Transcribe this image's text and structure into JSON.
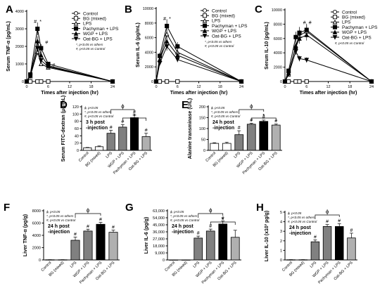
{
  "chart_data": [
    {
      "panel": "A",
      "type": "line",
      "ylabel": "Serum TNF-α (pg/mL)",
      "xlabel": "Times after injection (hr)",
      "ylim": [
        0,
        4000
      ],
      "yticks": [
        "0",
        "1000",
        "2000",
        "3000",
        "4000"
      ],
      "xlim": [
        0,
        24
      ],
      "xticks": [
        "0",
        "6",
        "12",
        "18",
        "24"
      ],
      "notes": [
        "*, p<0.05 vs others",
        "#, p<0.05 vs Control"
      ],
      "marks": [
        "#",
        "*",
        "#",
        "#"
      ],
      "series": [
        {
          "name": "Control",
          "marker": "circle-open",
          "x": [
            0,
            1,
            3,
            4,
            6,
            24
          ],
          "y": [
            0,
            0,
            0,
            0,
            0,
            0
          ]
        },
        {
          "name": "BG (mixed)",
          "marker": "square-open",
          "x": [
            0,
            1,
            3,
            4,
            6,
            24
          ],
          "y": [
            0,
            0,
            0,
            0,
            0,
            0
          ]
        },
        {
          "name": "LPS",
          "marker": "triangle-open",
          "x": [
            0,
            1,
            3,
            4,
            6,
            24
          ],
          "y": [
            0,
            300,
            1700,
            1000,
            800,
            0
          ]
        },
        {
          "name": "Pachyman + LPS",
          "marker": "square-filled",
          "x": [
            0,
            1,
            3,
            4,
            6,
            24
          ],
          "y": [
            0,
            400,
            3000,
            1900,
            1000,
            0
          ]
        },
        {
          "name": "WGP + LPS",
          "marker": "triangle-filled",
          "x": [
            0,
            1,
            3,
            4,
            6,
            24
          ],
          "y": [
            0,
            350,
            2300,
            1500,
            900,
            0
          ]
        },
        {
          "name": "Oat-BG + LPS",
          "marker": "triangle-down-filled",
          "x": [
            0,
            1,
            3,
            4,
            6,
            24
          ],
          "y": [
            0,
            300,
            1900,
            1200,
            850,
            0
          ]
        }
      ]
    },
    {
      "panel": "B",
      "type": "line",
      "ylabel": "Serum IL-6 (pg/mL)",
      "xlabel": "Times after injection (hr)",
      "ylim": [
        0,
        10000
      ],
      "yticks": [
        "0",
        "2000",
        "4000",
        "6000",
        "8000",
        "10000"
      ],
      "xlim": [
        0,
        24
      ],
      "xticks": [
        "0",
        "6",
        "12",
        "18",
        "24"
      ],
      "notes": [
        "*, p<0.05 vs others",
        "#, p<0.05 vs Control"
      ],
      "marks": [
        "#",
        "*"
      ],
      "series": [
        {
          "name": "Control",
          "marker": "circle-open",
          "x": [
            0,
            1,
            3,
            6,
            24
          ],
          "y": [
            0,
            0,
            0,
            0,
            0
          ]
        },
        {
          "name": "BG (mixed)",
          "marker": "square-open",
          "x": [
            0,
            1,
            3,
            6,
            24
          ],
          "y": [
            0,
            0,
            0,
            0,
            0
          ]
        },
        {
          "name": "LPS",
          "marker": "triangle-open",
          "x": [
            0,
            1,
            3,
            6,
            24
          ],
          "y": [
            0,
            3000,
            6500,
            4000,
            0
          ]
        },
        {
          "name": "Pachyman + LPS",
          "marker": "square-filled",
          "x": [
            0,
            1,
            3,
            6,
            24
          ],
          "y": [
            0,
            3500,
            7600,
            4800,
            0
          ]
        },
        {
          "name": "WGP + LPS",
          "marker": "triangle-filled",
          "x": [
            0,
            1,
            3,
            6,
            24
          ],
          "y": [
            0,
            3000,
            5500,
            3600,
            0
          ]
        },
        {
          "name": "Oat-BG + LPS",
          "marker": "triangle-down-filled",
          "x": [
            0,
            1,
            3,
            6,
            24
          ],
          "y": [
            0,
            2500,
            4800,
            3000,
            0
          ]
        }
      ]
    },
    {
      "panel": "C",
      "type": "line",
      "ylabel": "Serum IL-10 (pg/mL)",
      "xlabel": "Times after injection (hr)",
      "ylim": [
        0,
        10000
      ],
      "yticks": [
        "0",
        "2000",
        "4000",
        "6000",
        "8000",
        "10000"
      ],
      "xlim": [
        0,
        24
      ],
      "xticks": [
        "0",
        "6",
        "12",
        "18",
        "24"
      ],
      "notes": [
        "#, p<0.05 vs Control"
      ],
      "marks": [
        "#",
        "#"
      ],
      "series": [
        {
          "name": "Control",
          "marker": "circle-open",
          "x": [
            0,
            1,
            3,
            4,
            6,
            24
          ],
          "y": [
            0,
            0,
            0,
            0,
            0,
            0
          ]
        },
        {
          "name": "BG (mixed)",
          "marker": "square-open",
          "x": [
            0,
            1,
            3,
            4,
            6,
            24
          ],
          "y": [
            0,
            0,
            0,
            0,
            0,
            0
          ]
        },
        {
          "name": "LPS",
          "marker": "triangle-open",
          "x": [
            0,
            1,
            3,
            4,
            6,
            24
          ],
          "y": [
            0,
            1000,
            5000,
            6400,
            7000,
            0
          ]
        },
        {
          "name": "Pachyman + LPS",
          "marker": "square-filled",
          "x": [
            0,
            1,
            3,
            4,
            6,
            24
          ],
          "y": [
            0,
            1500,
            6200,
            6800,
            7200,
            0
          ]
        },
        {
          "name": "WGP + LPS",
          "marker": "triangle-filled",
          "x": [
            0,
            1,
            3,
            4,
            6,
            24
          ],
          "y": [
            0,
            1200,
            4800,
            6000,
            6500,
            0
          ]
        },
        {
          "name": "Oat-BG + LPS",
          "marker": "triangle-down-filled",
          "x": [
            0,
            1,
            3,
            4,
            6,
            24
          ],
          "y": [
            0,
            1000,
            4200,
            3200,
            3000,
            0
          ]
        }
      ]
    },
    {
      "panel": "D",
      "type": "bar",
      "ylabel": "Serum FITC-dextran (μg/mL)",
      "annotation": "3 h post -injection",
      "ylim": [
        0,
        120
      ],
      "yticks": [
        "0",
        "20",
        "40",
        "60",
        "80",
        "100",
        "120"
      ],
      "notes": [
        "ϕ, p<0.05",
        "*, p<0.05 vs others",
        "#, p<0.05 vs Control"
      ],
      "categories": [
        "Control",
        "BG (mixed)",
        "LPS",
        "WGP + LPS",
        "Pachyman + LPS",
        "Oat-BG + LPS"
      ],
      "values": [
        7,
        10,
        47,
        64,
        90,
        38
      ],
      "errors": [
        1,
        2,
        8,
        7,
        7,
        9
      ],
      "colors": [
        "#ffffff",
        "#ffffff",
        "#808080",
        "#808080",
        "#000000",
        "#b0b0b0"
      ],
      "marks": [
        "",
        "",
        "#",
        "#",
        "*#",
        "#"
      ]
    },
    {
      "panel": "E",
      "type": "bar",
      "ylabel": "Alanine transminase (U/L)",
      "annotation": "24 h post -injection",
      "ylim": [
        0,
        200
      ],
      "yticks": [
        "0",
        "50",
        "100",
        "150",
        "200"
      ],
      "notes": [
        "ϕ, p<0.05",
        "*, p<0.05 vs others",
        "#, p<0.05 vs Control"
      ],
      "categories": [
        "Control",
        "BG (mixed)",
        "LPS",
        "WGP + LPS",
        "Pachyman + LPS",
        "Oat-BG + LPS"
      ],
      "values": [
        32,
        32,
        72,
        120,
        133,
        116
      ],
      "errors": [
        3,
        5,
        18,
        4,
        6,
        5
      ],
      "colors": [
        "#ffffff",
        "#ffffff",
        "#808080",
        "#808080",
        "#000000",
        "#b0b0b0"
      ],
      "marks": [
        "",
        "",
        "#",
        "#",
        "*#",
        "#"
      ]
    },
    {
      "panel": "F",
      "type": "bar",
      "ylabel": "Liver TNF-α (pg/g)",
      "annotation": "24 h post -injection",
      "ylim": [
        0,
        8000
      ],
      "yticks": [
        "0",
        "2000",
        "4000",
        "6000",
        "8000"
      ],
      "notes": [
        "ϕ, p<0.05",
        "*, p<0.05 vs others",
        "#, p<0.05 vs Control"
      ],
      "categories": [
        "Control",
        "BG (mixed)",
        "LPS",
        "WGP + LPS",
        "Pachyman + LPS",
        "Oat-BG + LPS"
      ],
      "values": [
        30,
        30,
        3200,
        4700,
        5800,
        4500
      ],
      "errors": [
        10,
        10,
        500,
        300,
        300,
        350
      ],
      "colors": [
        "#ffffff",
        "#ffffff",
        "#808080",
        "#808080",
        "#000000",
        "#b0b0b0"
      ],
      "marks": [
        "",
        "",
        "#",
        "#",
        "#",
        "#"
      ]
    },
    {
      "panel": "G",
      "type": "bar",
      "ylabel": "Liver IL-6 (pg/g)",
      "annotation": "24 h post -injection",
      "ylim": [
        0,
        63000
      ],
      "yticks": [
        "0",
        "9,000",
        "18,000",
        "27,000",
        "36,000",
        "45,000",
        "54,000",
        "63,000"
      ],
      "notes": [
        "ϕ, p<0.05",
        "*, p<0.05 vs others",
        "#, p<0.05 vs Control"
      ],
      "categories": [
        "Control",
        "BG (mixed)",
        "LPS",
        "WGP + LPS",
        "Pachyman + LPS",
        "Oat-BG + LPS"
      ],
      "values": [
        100,
        100,
        28000,
        37000,
        46000,
        29000
      ],
      "errors": [
        50,
        50,
        2500,
        2500,
        4000,
        9000
      ],
      "colors": [
        "#ffffff",
        "#ffffff",
        "#808080",
        "#808080",
        "#000000",
        "#b0b0b0"
      ],
      "marks": [
        "",
        "",
        "#",
        "#",
        "*#",
        ""
      ]
    },
    {
      "panel": "H",
      "type": "bar",
      "ylabel": "Liver IL-10 (x10³ pg/g)",
      "annotation": "24 h post -injection",
      "ylim": [
        0,
        5
      ],
      "yticks": [
        "0",
        "1",
        "2",
        "3",
        "4",
        "5"
      ],
      "notes": [
        "ϕ, p<0.05",
        "*, p<0.05 vs others",
        "#, p<0.05 vs Control"
      ],
      "categories": [
        "Control",
        "BG (mixed)",
        "LPS",
        "WGP + LPS",
        "Pachyman + LPS",
        "Oat-BG + LPS"
      ],
      "values": [
        0.02,
        0.02,
        1.9,
        3.5,
        3.5,
        2.3
      ],
      "errors": [
        0.01,
        0.01,
        0.2,
        0.2,
        0.3,
        0.5
      ],
      "colors": [
        "#ffffff",
        "#ffffff",
        "#808080",
        "#808080",
        "#000000",
        "#b0b0b0"
      ],
      "marks": [
        "",
        "",
        "#",
        "#",
        "#",
        "#"
      ]
    }
  ]
}
